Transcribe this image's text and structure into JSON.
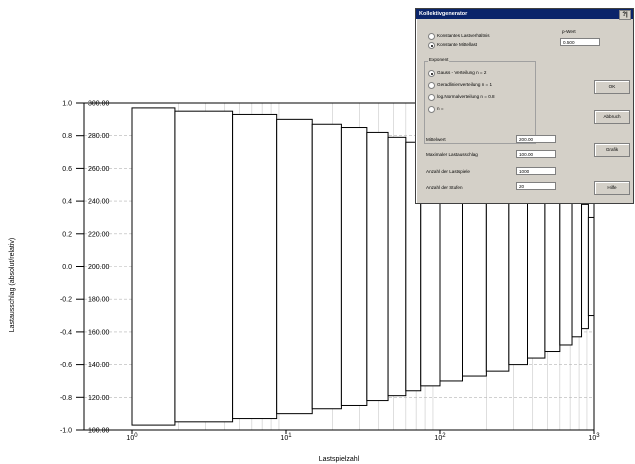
{
  "chart_data": {
    "type": "bar",
    "x_scale": "log",
    "xlabel": "Lastspielzahl",
    "ylabel": "Lastausschlag (absolut/relativ)",
    "xlim": [
      1,
      1000
    ],
    "x_ticks": [
      {
        "base": "10",
        "exp": "0"
      },
      {
        "base": "10",
        "exp": "1"
      },
      {
        "base": "10",
        "exp": "2"
      },
      {
        "base": "10",
        "exp": "3"
      }
    ],
    "y_rel_ticks": [
      "1.0",
      "0.8",
      "0.6",
      "0.4",
      "0.2",
      "0.0",
      "-0.2",
      "-0.4",
      "-0.6",
      "-0.8",
      "-1.0"
    ],
    "y_abs_ticks": [
      "300.00",
      "280.00",
      "260.00",
      "240.00",
      "220.00",
      "200.00",
      "180.00",
      "160.00",
      "140.00",
      "120.00",
      "100.00"
    ],
    "ylim_abs": [
      100,
      300
    ],
    "steps": [
      {
        "x_end": 1.9,
        "upper": 297,
        "lower": 103
      },
      {
        "x_end": 4.5,
        "upper": 295,
        "lower": 105
      },
      {
        "x_end": 8.7,
        "upper": 293,
        "lower": 107
      },
      {
        "x_end": 14.8,
        "upper": 290,
        "lower": 110
      },
      {
        "x_end": 22.9,
        "upper": 287,
        "lower": 113
      },
      {
        "x_end": 33.5,
        "upper": 285,
        "lower": 115
      },
      {
        "x_end": 46,
        "upper": 282,
        "lower": 118
      },
      {
        "x_end": 60,
        "upper": 279,
        "lower": 121
      },
      {
        "x_end": 75,
        "upper": 276,
        "lower": 124
      },
      {
        "x_end": 100,
        "upper": 273,
        "lower": 127
      },
      {
        "x_end": 140,
        "upper": 270,
        "lower": 130
      },
      {
        "x_end": 200,
        "upper": 267,
        "lower": 133
      },
      {
        "x_end": 280,
        "upper": 264,
        "lower": 136
      },
      {
        "x_end": 370,
        "upper": 260,
        "lower": 140
      },
      {
        "x_end": 480,
        "upper": 256,
        "lower": 144
      },
      {
        "x_end": 600,
        "upper": 252,
        "lower": 148
      },
      {
        "x_end": 720,
        "upper": 248,
        "lower": 152
      },
      {
        "x_end": 830,
        "upper": 243,
        "lower": 157
      },
      {
        "x_end": 920,
        "upper": 238,
        "lower": 162
      },
      {
        "x_end": 1000,
        "upper": 230,
        "lower": 170
      }
    ]
  },
  "dialog": {
    "title": "Kollektivgenerator",
    "help_glyph": "?|",
    "radio_const_ratio": "Konstantes Lastverhältnis",
    "radio_const_mean": "Konstante Mittellast",
    "p_label": "p-Wert",
    "p_value": "0.500",
    "exponent_group": "Exponent",
    "exp_gauss": "Gauss - Verteilung   n = 2",
    "exp_gerade": "Geradlinienverteilung   n = 1",
    "exp_lognormal": "log.Normalverteilung  n = 0.8",
    "exp_n": "n =",
    "mean_label": "Mittelwert",
    "mean_value": "200.00",
    "max_label": "Maximaler Lastausschlag",
    "max_value": "100.00",
    "cycles_label": "Anzahl der Lastspiele",
    "cycles_value": "1000",
    "stages_label": "Anzahl der Stufen",
    "stages_value": "20",
    "ok_label": "OK",
    "cancel_label": "Abbruch",
    "graphic_label": "Grafik",
    "help_label": "Hilfe"
  }
}
